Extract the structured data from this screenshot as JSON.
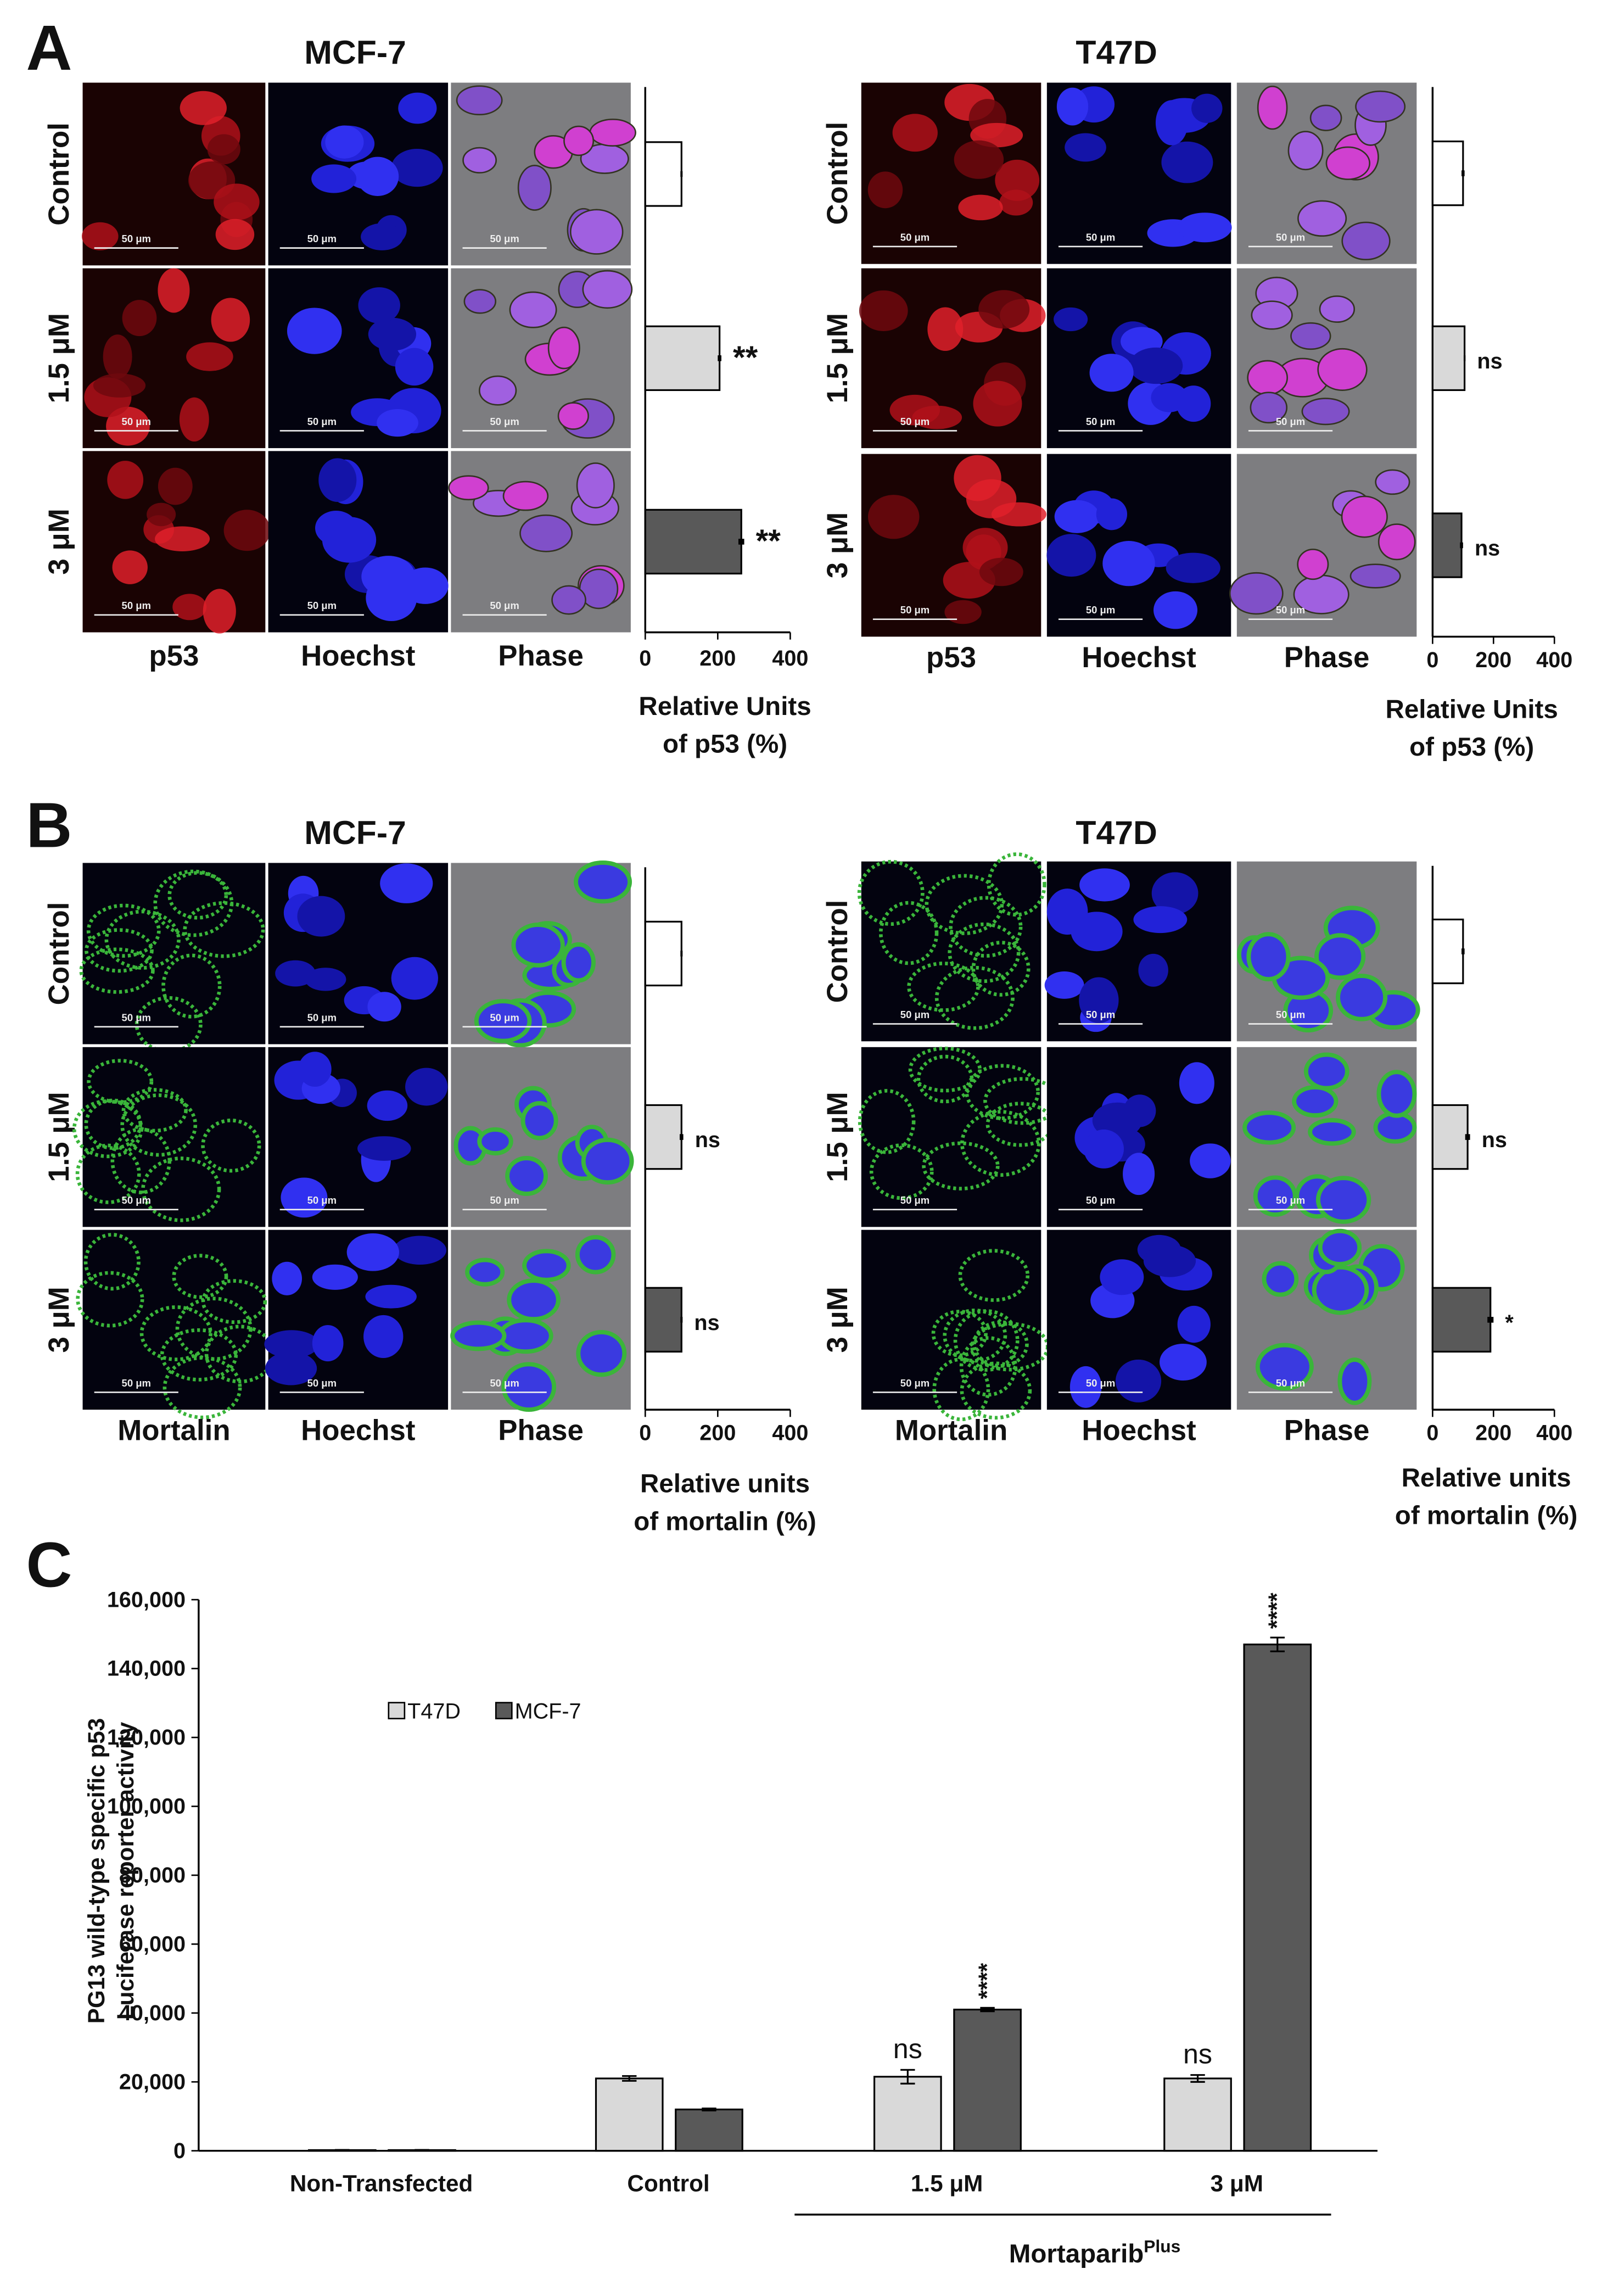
{
  "panel_labels": [
    "A",
    "B",
    "C"
  ],
  "image_panels": [
    {
      "title": "MCF-7",
      "rows": [
        "Control",
        "1.5 μM",
        "3 μM"
      ],
      "columns": [
        "p53",
        "Hoechst",
        "Phase"
      ],
      "scale_bar": "50 μm"
    },
    {
      "title": "T47D",
      "rows": [
        "Control",
        "1.5 μM",
        "3 μM"
      ],
      "columns": [
        "p53",
        "Hoechst",
        "Phase"
      ],
      "scale_bar": "50 μm"
    },
    {
      "title": "MCF-7",
      "rows": [
        "Control",
        "1.5 μM",
        "3 μM"
      ],
      "columns": [
        "Mortalin",
        "Hoechst",
        "Phase"
      ],
      "scale_bar": "50 μm"
    },
    {
      "title": "T47D",
      "rows": [
        "Control",
        "1.5 μM",
        "3 μM"
      ],
      "columns": [
        "Mortalin",
        "Hoechst",
        "Phase"
      ],
      "scale_bar": "50 μm"
    }
  ],
  "chart_data": [
    {
      "type": "bar",
      "horizontal": true,
      "values": [
        100,
        205,
        265
      ],
      "errors": [
        3,
        5,
        8
      ],
      "colors": [
        "#ffffff",
        "#d9d9d9",
        "#595959"
      ],
      "annotations": [
        null,
        "**",
        "**"
      ],
      "xlim": [
        0,
        400
      ],
      "xticks": [
        0,
        200,
        400
      ],
      "xlabel": [
        "Relative Units",
        "of p53 (%)"
      ]
    },
    {
      "type": "bar",
      "horizontal": true,
      "values": [
        100,
        105,
        95
      ],
      "errors": [
        5,
        3,
        5
      ],
      "colors": [
        "#ffffff",
        "#d9d9d9",
        "#595959"
      ],
      "annotations": [
        null,
        "ns",
        "ns"
      ],
      "xlim": [
        0,
        400
      ],
      "xticks": [
        0,
        200,
        400
      ],
      "xlabel": [
        "Relative Units",
        "of p53 (%)"
      ]
    },
    {
      "type": "bar",
      "horizontal": true,
      "values": [
        100,
        100,
        100
      ],
      "errors": [
        3,
        5,
        3
      ],
      "colors": [
        "#ffffff",
        "#d9d9d9",
        "#595959"
      ],
      "annotations": [
        null,
        "ns",
        "ns"
      ],
      "xlim": [
        0,
        400
      ],
      "xticks": [
        0,
        200,
        400
      ],
      "xlabel": [
        "Relative units",
        "of mortalin (%)"
      ]
    },
    {
      "type": "bar",
      "horizontal": true,
      "values": [
        100,
        115,
        190
      ],
      "errors": [
        5,
        8,
        10
      ],
      "colors": [
        "#ffffff",
        "#d9d9d9",
        "#595959"
      ],
      "annotations": [
        null,
        "ns",
        "*"
      ],
      "xlim": [
        0,
        400
      ],
      "xticks": [
        0,
        200,
        400
      ],
      "xlabel": [
        "Relative units",
        "of mortalin (%)"
      ]
    },
    {
      "type": "bar",
      "categories": [
        "Non-Transfected",
        "Control",
        "1.5 μM",
        "3 μM"
      ],
      "series": [
        {
          "name": "T47D",
          "color": "#d9d9d9",
          "values": [
            200,
            21000,
            21500,
            21000
          ],
          "errors": [
            50,
            700,
            2000,
            1000
          ],
          "annotations": [
            null,
            null,
            "ns",
            "ns"
          ]
        },
        {
          "name": "MCF-7",
          "color": "#595959",
          "values": [
            200,
            12000,
            41000,
            147000
          ],
          "errors": [
            50,
            300,
            500,
            2000
          ],
          "annotations": [
            null,
            null,
            "****",
            "****"
          ]
        }
      ],
      "ylim": [
        0,
        160000
      ],
      "yticks": [
        0,
        {
          "value": 20000,
          "label": "20,000"
        },
        {
          "value": 40000,
          "label": "40,000"
        },
        {
          "value": 60000,
          "label": "60,000"
        },
        {
          "value": 80000,
          "label": "80,000"
        },
        {
          "value": 100000,
          "label": "100,000"
        },
        {
          "value": 120000,
          "label": "120,000"
        },
        {
          "value": 140000,
          "label": "140,000"
        },
        {
          "value": 160000,
          "label": "160,000"
        }
      ],
      "ylabel": [
        "PG13 wild-type specific p53",
        "Luciferase reporter activity"
      ],
      "group_label": "Mortaparib",
      "group_label_superscript": "Plus",
      "legend": "upper left"
    }
  ]
}
